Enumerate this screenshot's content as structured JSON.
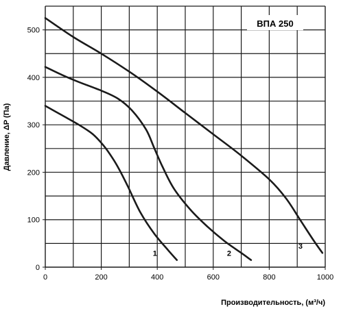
{
  "chart_data": {
    "type": "line",
    "title": "ВПА 250",
    "xlabel": "Производительность, (м³/ч)",
    "ylabel": "Давление, ΔP (Па)",
    "xlim": [
      0,
      1000
    ],
    "ylim": [
      0,
      550
    ],
    "x_ticks": [
      "0",
      "200",
      "400",
      "600",
      "800",
      "1000"
    ],
    "y_ticks": [
      "0",
      "100",
      "200",
      "300",
      "400",
      "500"
    ],
    "grid": true,
    "series": [
      {
        "name": "1",
        "points": [
          [
            0,
            340
          ],
          [
            60,
            320
          ],
          [
            120,
            300
          ],
          [
            170,
            280
          ],
          [
            210,
            255
          ],
          [
            240,
            230
          ],
          [
            265,
            205
          ],
          [
            295,
            170
          ],
          [
            340,
            115
          ],
          [
            390,
            70
          ],
          [
            440,
            35
          ],
          [
            470,
            15
          ]
        ]
      },
      {
        "name": "2",
        "points": [
          [
            0,
            422
          ],
          [
            60,
            405
          ],
          [
            120,
            390
          ],
          [
            200,
            372
          ],
          [
            260,
            355
          ],
          [
            310,
            330
          ],
          [
            360,
            290
          ],
          [
            390,
            250
          ],
          [
            420,
            210
          ],
          [
            460,
            165
          ],
          [
            520,
            120
          ],
          [
            580,
            85
          ],
          [
            640,
            55
          ],
          [
            700,
            30
          ],
          [
            735,
            15
          ]
        ]
      },
      {
        "name": "3",
        "points": [
          [
            0,
            525
          ],
          [
            100,
            485
          ],
          [
            200,
            450
          ],
          [
            300,
            412
          ],
          [
            400,
            370
          ],
          [
            500,
            325
          ],
          [
            600,
            280
          ],
          [
            700,
            235
          ],
          [
            800,
            185
          ],
          [
            860,
            145
          ],
          [
            910,
            100
          ],
          [
            960,
            55
          ],
          [
            990,
            30
          ]
        ]
      }
    ],
    "colors": {
      "line": "#1a1a1a",
      "grid": "#1a1a1a",
      "background": "#ffffff"
    }
  }
}
